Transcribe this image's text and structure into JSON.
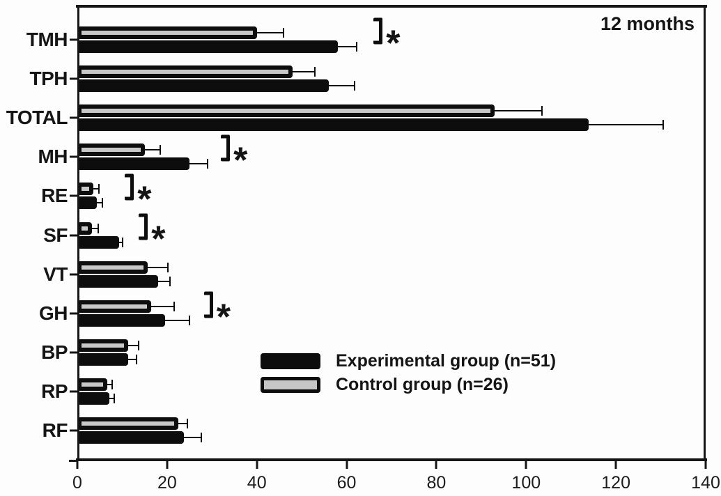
{
  "figure": {
    "annotation": "12 months"
  },
  "legend": {
    "experimental": {
      "label": "Experimental group (n=51)",
      "swatch_fill": "#0d0d0d"
    },
    "control": {
      "label": "Control group (n=26)",
      "swatch_fill": "#c6c6c6"
    }
  },
  "colors": {
    "experimental_bar": "#0d0d0d",
    "control_bar_fill": "#c9c9c9",
    "bar_border": "#0d0d0d",
    "axis": "#161616",
    "background": "#fdfdfd"
  },
  "chart_data": {
    "type": "bar",
    "orientation": "horizontal",
    "annotation": "12 months",
    "categories": [
      "TMH",
      "TPH",
      "TOTAL",
      "MH",
      "RE",
      "SF",
      "VT",
      "GH",
      "BP",
      "RP",
      "RF"
    ],
    "series": [
      {
        "name": "Control group (n=26)",
        "position": "top-bar",
        "style": "gray-fill-black-outline",
        "values": [
          40,
          48,
          93,
          15,
          3.5,
          3.3,
          15.7,
          16.5,
          11.4,
          6.7,
          22.5
        ],
        "errors_plus": [
          6,
          5,
          10.5,
          3.5,
          1.3,
          1.4,
          4.5,
          5,
          2.3,
          1.1,
          2.1
        ]
      },
      {
        "name": "Experimental group (n=51)",
        "position": "bottom-bar",
        "style": "solid-black",
        "values": [
          58,
          56,
          114,
          25,
          4.4,
          9.3,
          18,
          19.6,
          11.4,
          7.2,
          23.8
        ],
        "errors_plus": [
          4.3,
          5.8,
          16.5,
          4,
          1.2,
          0.8,
          2.7,
          5.4,
          1.8,
          1.1,
          3.9
        ]
      }
    ],
    "significance_markers": [
      {
        "category": "TMH",
        "symbol": "*",
        "x": 66
      },
      {
        "category": "MH",
        "symbol": "*",
        "x": 32
      },
      {
        "category": "RE",
        "symbol": "*",
        "x": 10.6
      },
      {
        "category": "SF",
        "symbol": "*",
        "x": 13.7
      },
      {
        "category": "GH",
        "symbol": "*",
        "x": 28.2
      }
    ],
    "xlim": [
      0,
      140
    ],
    "xticks": [
      0,
      20,
      40,
      60,
      80,
      100,
      120,
      140
    ],
    "grid": false,
    "error_bars": "plus-direction-with-caps",
    "legend_position": "inside lower center"
  }
}
